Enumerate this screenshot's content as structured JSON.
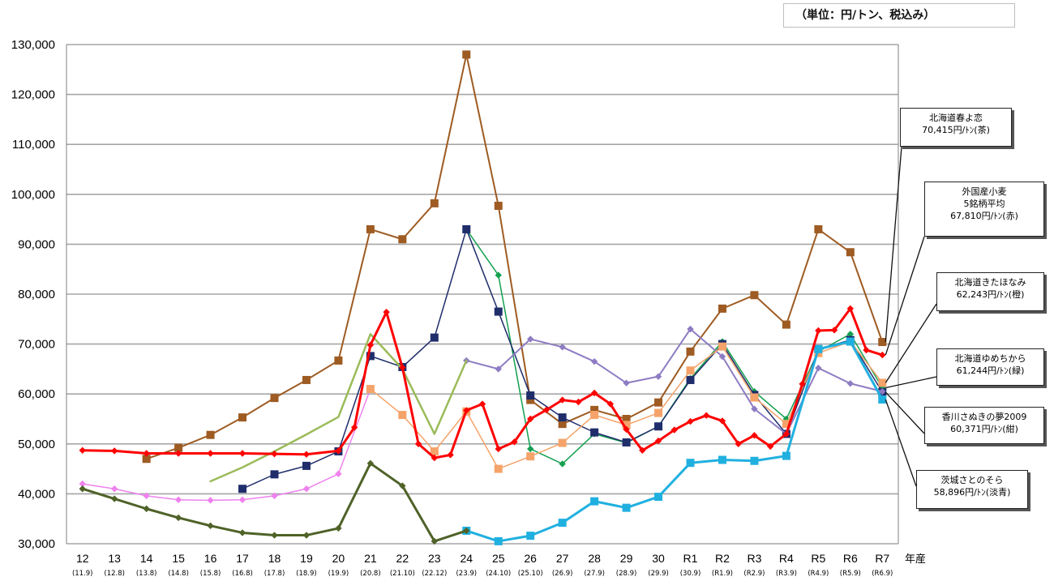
{
  "unit_note": "（単位：円/トン、税込み）",
  "colors": {
    "kasuga_yoikoi": "#9e5b22",
    "foreign_avg": "#ff0000",
    "kitahonami": "#f5a36a",
    "yumechikara": "#14a050",
    "sanuki_no_yume": "#1f2d6b",
    "satonosora": "#20b0e0",
    "purple_series": "#8e7cc3",
    "lightgreen_series": "#9bbb59",
    "pink_series": "#ee82ee",
    "darkolive_series": "#4f6228",
    "grid": "#a6a6a6",
    "axis": "#808080"
  },
  "callouts": [
    {
      "lines": [
        "北海道春よ恋",
        "70,415円/ﾄﾝ(茶)"
      ]
    },
    {
      "lines": [
        "外国産小麦",
        "5銘柄平均",
        "67,810円/ﾄﾝ(赤)"
      ]
    },
    {
      "lines": [
        "北海道きたほなみ",
        "62,243円/ﾄﾝ(橙)"
      ]
    },
    {
      "lines": [
        "北海道ゆめちから",
        "61,244円/ﾄﾝ(緑)"
      ]
    },
    {
      "lines": [
        "香川さぬきの夢2009",
        "60,371円/ﾄﾝ(紺)"
      ]
    },
    {
      "lines": [
        "茨城さとのそら",
        "58,896円/ﾄﾝ(淡青)"
      ]
    }
  ],
  "chart_data": {
    "type": "line",
    "ylim": [
      30000,
      130000
    ],
    "yticks": [
      "30,000",
      "40,000",
      "50,000",
      "60,000",
      "70,000",
      "80,000",
      "90,000",
      "100,000",
      "110,000",
      "120,000",
      "130,000"
    ],
    "ytick_values": [
      30000,
      40000,
      50000,
      60000,
      70000,
      80000,
      90000,
      100000,
      110000,
      120000,
      130000
    ],
    "xlabel": "年産",
    "categories": [
      "12",
      "13",
      "14",
      "15",
      "16",
      "17",
      "18",
      "19",
      "20",
      "21",
      "22",
      "23",
      "24",
      "25",
      "26",
      "27",
      "28",
      "29",
      "30",
      "R1",
      "R2",
      "R3",
      "R4",
      "R5",
      "R6",
      "R7"
    ],
    "category_subs": [
      "(11.9)",
      "(12.8)",
      "(13.8)",
      "(14.8)",
      "(15.8)",
      "(16.8)",
      "(17.8)",
      "(18.9)",
      "(19.9)",
      "(20.8)",
      "(21.10)",
      "(22.12)",
      "(23.9)",
      "(24.10)",
      "(25.10)",
      "(26.9)",
      "(27.9)",
      "(28.9)",
      "(29.9)",
      "(30.9)",
      "(R1.9)",
      "(R2.9)",
      "(R3.9)",
      "(R4.9)",
      "(R5.9)",
      "(R6.9)"
    ],
    "series": [
      {
        "name": "北海道春よ恋",
        "color": "#9e5b22",
        "marker": "square",
        "width": 2,
        "points": [
          [
            2,
            47000
          ],
          [
            3,
            49200
          ],
          [
            4,
            51800
          ],
          [
            5,
            55300
          ],
          [
            6,
            59200
          ],
          [
            7,
            62800
          ],
          [
            8,
            66700
          ],
          [
            9,
            93000
          ],
          [
            10,
            91000
          ],
          [
            11,
            98200
          ],
          [
            12,
            128000
          ],
          [
            13,
            97700
          ],
          [
            14,
            58800
          ],
          [
            15,
            54000
          ],
          [
            16,
            56800
          ],
          [
            17,
            55000
          ],
          [
            18,
            58300
          ],
          [
            19,
            68500
          ],
          [
            20,
            77100
          ],
          [
            21,
            79800
          ],
          [
            22,
            73900
          ],
          [
            23,
            93000
          ],
          [
            24,
            88400
          ],
          [
            25,
            70415
          ]
        ]
      },
      {
        "name": "北海道ゆめちから",
        "color": "#14a050",
        "marker": "diamond",
        "width": 1.5,
        "points": [
          [
            12,
            93000
          ],
          [
            13,
            83800
          ],
          [
            14,
            49000
          ],
          [
            15,
            46000
          ],
          [
            16,
            52000
          ],
          [
            17,
            50200
          ],
          [
            18,
            53500
          ],
          [
            19,
            63100
          ],
          [
            20,
            70500
          ],
          [
            21,
            60500
          ],
          [
            22,
            55000
          ],
          [
            23,
            68500
          ],
          [
            24,
            72000
          ],
          [
            25,
            61244
          ]
        ]
      },
      {
        "name": "香川さぬきの夢2009",
        "color": "#1f2d6b",
        "marker": "square",
        "width": 1.5,
        "points": [
          [
            5,
            41000
          ],
          [
            6,
            43900
          ],
          [
            7,
            45600
          ],
          [
            8,
            48500
          ],
          [
            9,
            67600
          ],
          [
            10,
            65400
          ],
          [
            11,
            71300
          ],
          [
            12,
            93000
          ],
          [
            13,
            76500
          ],
          [
            14,
            59700
          ],
          [
            15,
            55300
          ],
          [
            16,
            52300
          ],
          [
            17,
            50300
          ],
          [
            18,
            53500
          ],
          [
            19,
            62800
          ],
          [
            20,
            70000
          ],
          [
            21,
            59800
          ],
          [
            22,
            52000
          ],
          [
            23,
            69000
          ],
          [
            24,
            70800
          ],
          [
            25,
            60371
          ]
        ]
      },
      {
        "name": "",
        "color": "#8e7cc3",
        "marker": "diamond",
        "width": 2,
        "points": [
          [
            12,
            66700
          ],
          [
            13,
            65000
          ],
          [
            14,
            71000
          ],
          [
            15,
            69400
          ],
          [
            16,
            66500
          ],
          [
            17,
            62200
          ],
          [
            18,
            63500
          ],
          [
            19,
            73000
          ],
          [
            20,
            67500
          ],
          [
            21,
            57000
          ],
          [
            22,
            52000
          ],
          [
            23,
            65200
          ],
          [
            24,
            62100
          ],
          [
            25,
            60500
          ]
        ]
      },
      {
        "name": "",
        "color": "#9bbb59",
        "marker": "none",
        "width": 2.5,
        "points": [
          [
            4,
            42500
          ],
          [
            5,
            45300
          ],
          [
            6,
            48500
          ],
          [
            7,
            51900
          ],
          [
            8,
            55400
          ],
          [
            9,
            72000
          ],
          [
            10,
            65000
          ],
          [
            11,
            52000
          ],
          [
            12,
            66700
          ]
        ]
      },
      {
        "name": "",
        "color": "#ee82ee",
        "marker": "diamond",
        "width": 1.5,
        "points": [
          [
            0,
            42000
          ],
          [
            1,
            41000
          ],
          [
            2,
            39600
          ],
          [
            3,
            38800
          ],
          [
            4,
            38700
          ],
          [
            5,
            38800
          ],
          [
            6,
            39600
          ],
          [
            7,
            41000
          ],
          [
            8,
            44000
          ],
          [
            9,
            61000
          ]
        ]
      },
      {
        "name": "北海道きたほなみ",
        "color": "#f5a36a",
        "marker": "square",
        "width": 1.5,
        "points": [
          [
            9,
            61000
          ],
          [
            10,
            55800
          ],
          [
            11,
            48500
          ],
          [
            12,
            56500
          ],
          [
            13,
            45000
          ],
          [
            14,
            47500
          ],
          [
            15,
            50200
          ],
          [
            16,
            55800
          ],
          [
            17,
            53800
          ],
          [
            18,
            56200
          ],
          [
            19,
            64700
          ],
          [
            20,
            69500
          ],
          [
            21,
            59300
          ],
          [
            22,
            54000
          ],
          [
            23,
            68200
          ],
          [
            24,
            70500
          ],
          [
            25,
            62243
          ]
        ]
      },
      {
        "name": "茨城さとのそら",
        "color": "#20b0e0",
        "marker": "square",
        "width": 3,
        "points": [
          [
            12,
            32600
          ],
          [
            13,
            30500
          ],
          [
            14,
            31600
          ],
          [
            15,
            34200
          ],
          [
            16,
            38500
          ],
          [
            17,
            37200
          ],
          [
            18,
            39400
          ],
          [
            19,
            46200
          ],
          [
            20,
            46800
          ],
          [
            21,
            46600
          ],
          [
            22,
            47600
          ],
          [
            23,
            69000
          ],
          [
            24,
            70500
          ],
          [
            25,
            58896
          ]
        ]
      },
      {
        "name": "",
        "color": "#4f6228",
        "marker": "diamond",
        "width": 3,
        "points": [
          [
            0,
            41000
          ],
          [
            1,
            39000
          ],
          [
            2,
            37000
          ],
          [
            3,
            35200
          ],
          [
            4,
            33600
          ],
          [
            5,
            32200
          ],
          [
            6,
            31700
          ],
          [
            7,
            31700
          ],
          [
            8,
            33100
          ],
          [
            9,
            46100
          ],
          [
            10,
            41600
          ],
          [
            11,
            30500
          ],
          [
            12,
            32600
          ]
        ]
      },
      {
        "name": "外国産小麦5銘柄平均",
        "color": "#ff0000",
        "marker": "diamond",
        "width": 3,
        "points": [
          [
            0,
            48700
          ],
          [
            1,
            48600
          ],
          [
            2,
            48100
          ],
          [
            3,
            48100
          ],
          [
            4,
            48100
          ],
          [
            5,
            48100
          ],
          [
            6,
            48000
          ],
          [
            7,
            47900
          ],
          [
            8,
            48600
          ],
          [
            8.5,
            53300
          ],
          [
            9,
            69800
          ],
          [
            9.5,
            76400
          ],
          [
            10,
            65300
          ],
          [
            10.5,
            50000
          ],
          [
            11,
            47200
          ],
          [
            11.5,
            47800
          ],
          [
            12,
            56700
          ],
          [
            12.5,
            58000
          ],
          [
            13,
            49000
          ],
          [
            13.5,
            50400
          ],
          [
            14,
            55000
          ],
          [
            14.5,
            56800
          ],
          [
            15,
            58800
          ],
          [
            15.5,
            58400
          ],
          [
            16,
            60200
          ],
          [
            16.5,
            58000
          ],
          [
            17,
            52900
          ],
          [
            17.5,
            48700
          ],
          [
            18,
            50600
          ],
          [
            18.5,
            52800
          ],
          [
            19,
            54500
          ],
          [
            19.5,
            55700
          ],
          [
            20,
            54600
          ],
          [
            20.5,
            50000
          ],
          [
            21,
            51700
          ],
          [
            21.5,
            49500
          ],
          [
            22,
            52000
          ],
          [
            22.5,
            62000
          ],
          [
            23,
            72700
          ],
          [
            23.5,
            72800
          ],
          [
            24,
            77100
          ],
          [
            24.5,
            68800
          ],
          [
            25,
            67810
          ]
        ]
      }
    ]
  }
}
